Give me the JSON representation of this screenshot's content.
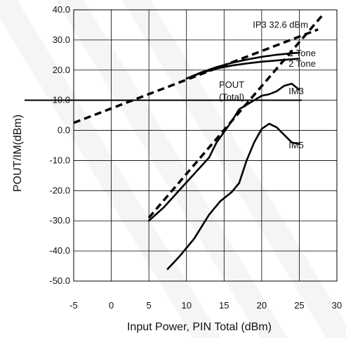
{
  "chart_data": {
    "type": "line",
    "xlabel": "Input Power, PIN Total (dBm)",
    "ylabel": "POUT/IM(dBm)",
    "xlim": [
      -5,
      30
    ],
    "ylim": [
      -50,
      40
    ],
    "x_ticks": [
      "-5",
      "0",
      "5",
      "10",
      "15",
      "20",
      "25",
      "30"
    ],
    "y_ticks": [
      "40.0",
      "30.0",
      "20.0",
      "10.0",
      "0.0",
      "-10.0",
      "-20.0",
      "-30.0",
      "-40.0",
      "-50.0"
    ],
    "grid": true,
    "series": [
      {
        "name": "1 Tone",
        "style": "solid",
        "x": [
          10,
          12,
          14,
          16,
          18,
          20,
          22,
          24,
          25
        ],
        "y": [
          17.2,
          19.3,
          21.0,
          22.4,
          23.5,
          24.4,
          25.1,
          25.6,
          25.8
        ]
      },
      {
        "name": "2 Tone",
        "style": "solid",
        "x": [
          10,
          12,
          14,
          16,
          18,
          20,
          22,
          24,
          25
        ],
        "y": [
          17.2,
          19.1,
          20.5,
          21.5,
          22.2,
          22.8,
          23.2,
          23.6,
          23.8
        ]
      },
      {
        "name": "",
        "style": "solid",
        "x": [
          5,
          7,
          9,
          11,
          13,
          14,
          15,
          16,
          17,
          18,
          19,
          20,
          21,
          22,
          23,
          24,
          25
        ],
        "y": [
          -30,
          -25.5,
          -20,
          -14.5,
          -9,
          -4,
          -0.5,
          3,
          7,
          8.5,
          10,
          11.5,
          12,
          13,
          14.8,
          15.5,
          13.5
        ]
      },
      {
        "name": "",
        "style": "solid",
        "x": [
          7.5,
          9,
          11,
          13,
          14.5,
          16,
          17,
          18,
          19,
          20,
          21,
          22,
          23,
          24,
          25
        ],
        "y": [
          -46,
          -42,
          -36,
          -28,
          -23.5,
          -20.5,
          -17.5,
          -10,
          -4,
          0.5,
          2.2,
          1,
          -1.5,
          -4,
          -4.5
        ]
      },
      {
        "name": "",
        "style": "dashed",
        "x": [
          -5,
          27.5
        ],
        "y": [
          2.5,
          33.5
        ]
      },
      {
        "name": "",
        "style": "dashed",
        "x": [
          5,
          28
        ],
        "y": [
          -29,
          38
        ]
      }
    ],
    "hlines": [
      10
    ],
    "annotations": [
      {
        "text": "IP3 32.6 dBm",
        "x": 22.5,
        "y": 35
      },
      {
        "text": "1 Tone",
        "x": 27.5,
        "y": 25.5
      },
      {
        "text": "2 Tone",
        "x": 27.5,
        "y": 22.0
      },
      {
        "text": "IM3",
        "x": 27.5,
        "y": 13.0
      },
      {
        "text": "IM5",
        "x": 27.5,
        "y": -5.0
      },
      {
        "text": "POUT",
        "x": 16,
        "y": 15.0
      },
      {
        "text": "(Total)",
        "x": 16,
        "y": 11.0
      }
    ]
  }
}
